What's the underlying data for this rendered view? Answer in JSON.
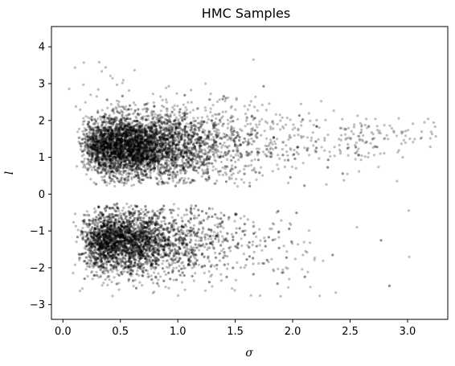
{
  "chart_data": {
    "type": "scatter",
    "title": "HMC Samples",
    "xlabel": "σ",
    "ylabel": "l",
    "xlim": [
      -0.1,
      3.35
    ],
    "ylim": [
      -3.4,
      4.55
    ],
    "x_ticks": [
      0.0,
      0.5,
      1.0,
      1.5,
      2.0,
      2.5,
      3.0
    ],
    "x_tick_labels": [
      "0.0",
      "0.5",
      "1.0",
      "1.5",
      "2.0",
      "2.5",
      "3.0"
    ],
    "y_ticks": [
      -3,
      -2,
      -1,
      0,
      1,
      2,
      3,
      4
    ],
    "y_tick_labels": [
      "−3",
      "−2",
      "−1",
      "0",
      "1",
      "2",
      "3",
      "4"
    ],
    "grid": false,
    "marker_color": "#000000",
    "marker_opacity": 0.25,
    "clusters": [
      {
        "region": "upper mode",
        "x_range": [
          0.05,
          3.25
        ],
        "y_center": 1.3,
        "y_range": [
          0.2,
          4.2
        ],
        "density_peak": [
          0.6,
          1.3
        ]
      },
      {
        "region": "lower mode",
        "x_range": [
          0.05,
          2.65
        ],
        "y_center": -1.3,
        "y_range": [
          -3.05,
          -0.25
        ],
        "density_peak": [
          0.5,
          -1.3
        ]
      }
    ]
  }
}
